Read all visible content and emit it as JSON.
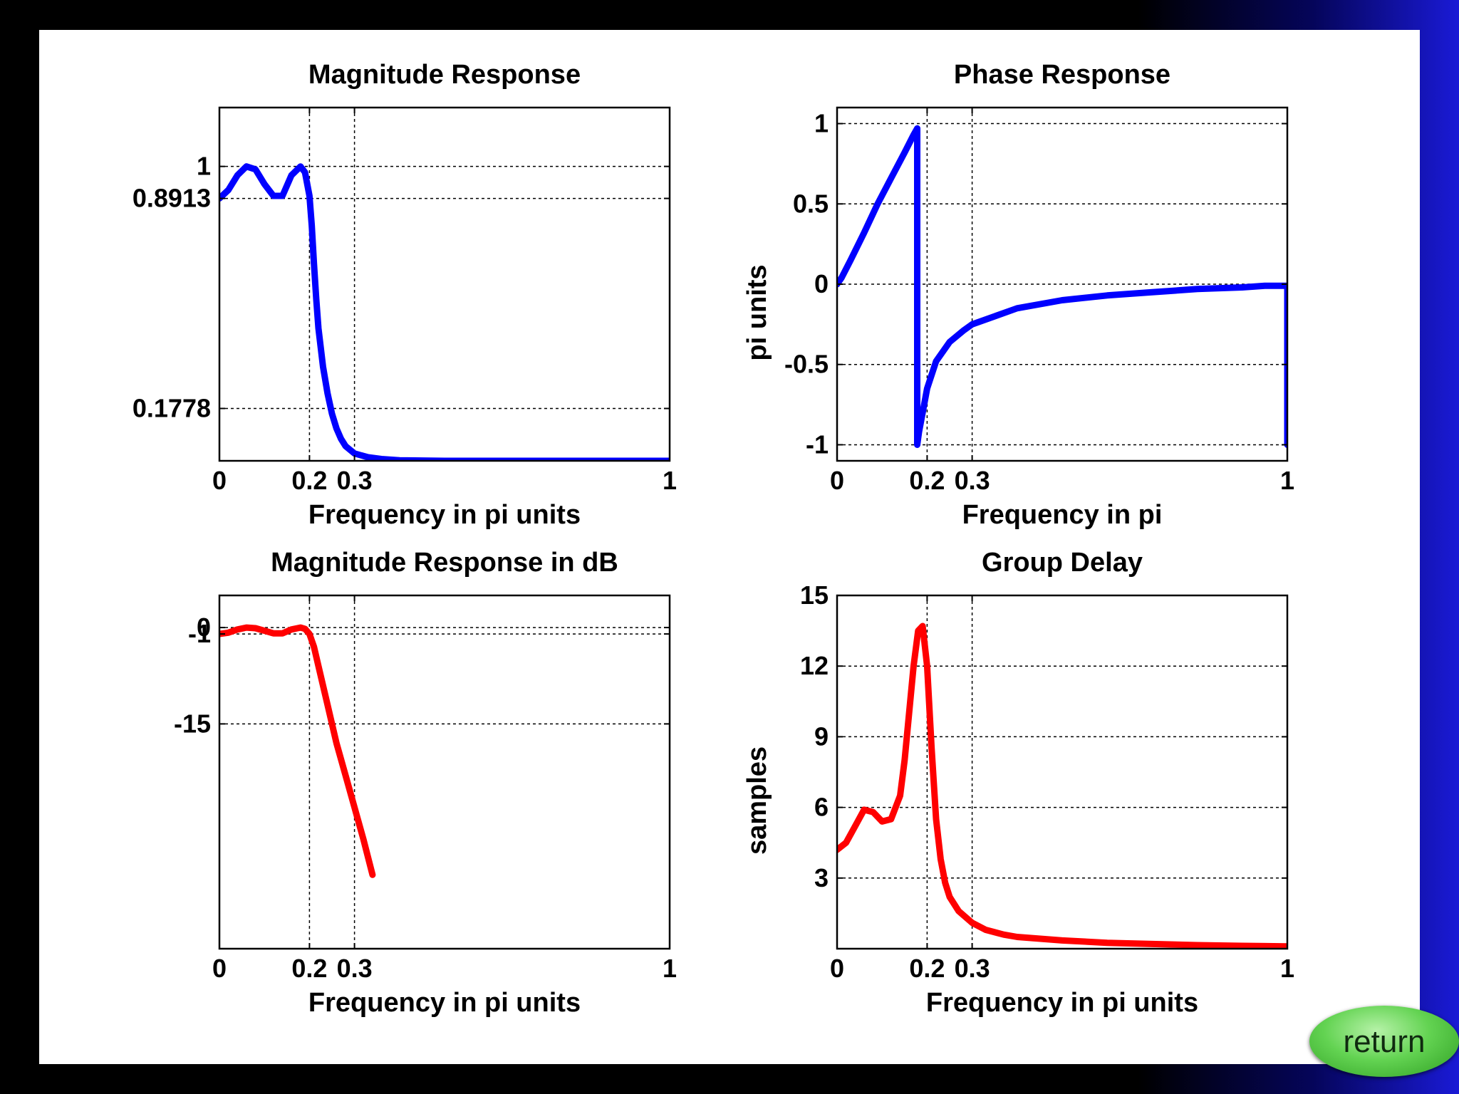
{
  "return_button": {
    "label": "return",
    "color": "#5ccf4a"
  },
  "chart_data": [
    {
      "type": "line",
      "title": "Magnitude Response",
      "xlabel": "Frequency in pi units",
      "ylabel": "",
      "xlim": [
        0,
        1
      ],
      "ylim": [
        0,
        1.2
      ],
      "xticks": [
        0,
        0.2,
        0.3,
        1
      ],
      "xtick_labels": [
        "0",
        "0.2",
        "0.3",
        "1"
      ],
      "yticks": [
        0.1778,
        0.8913,
        1
      ],
      "ytick_labels": [
        "0.1778",
        "0.8913",
        "1"
      ],
      "grid": "ticks",
      "color": "#0000ff",
      "series": [
        {
          "x": [
            0,
            0.02,
            0.04,
            0.06,
            0.08,
            0.1,
            0.12,
            0.14,
            0.16,
            0.18,
            0.19,
            0.2,
            0.205,
            0.21,
            0.215,
            0.22,
            0.23,
            0.24,
            0.25,
            0.26,
            0.27,
            0.28,
            0.3,
            0.33,
            0.36,
            0.4,
            0.45,
            0.5,
            0.6,
            0.7,
            0.8,
            0.9,
            1
          ],
          "values": [
            0.8913,
            0.92,
            0.97,
            1.0,
            0.99,
            0.94,
            0.9,
            0.9,
            0.97,
            1.0,
            0.98,
            0.9,
            0.8,
            0.67,
            0.55,
            0.45,
            0.32,
            0.23,
            0.16,
            0.11,
            0.075,
            0.05,
            0.025,
            0.012,
            0.006,
            0.002,
            0.001,
            0,
            0,
            0,
            0,
            0,
            0
          ]
        }
      ]
    },
    {
      "type": "line",
      "title": "Phase Response",
      "xlabel": "Frequency in pi",
      "ylabel": "pi units",
      "xlim": [
        0,
        1
      ],
      "ylim": [
        -1.1,
        1.1
      ],
      "xticks": [
        0,
        0.2,
        0.3,
        1
      ],
      "xtick_labels": [
        "0",
        "0.2",
        "0.3",
        "1"
      ],
      "yticks": [
        -1,
        -0.5,
        0,
        0.5,
        1
      ],
      "ytick_labels": [
        "-1",
        "-0.5",
        "0",
        "0.5",
        "1"
      ],
      "grid": "ticks",
      "color": "#0000ff",
      "series": [
        {
          "x": [
            0,
            0.01,
            0.03,
            0.06,
            0.09,
            0.12,
            0.15,
            0.17,
            0.178,
            0.178,
            0.182,
            0.19,
            0.2,
            0.22,
            0.25,
            0.28,
            0.3,
            0.35,
            0.4,
            0.5,
            0.6,
            0.7,
            0.8,
            0.9,
            0.95,
            1,
            1
          ],
          "values": [
            0,
            0.04,
            0.15,
            0.32,
            0.5,
            0.66,
            0.82,
            0.93,
            0.97,
            -1.0,
            -0.92,
            -0.8,
            -0.65,
            -0.48,
            -0.36,
            -0.29,
            -0.25,
            -0.2,
            -0.15,
            -0.1,
            -0.07,
            -0.05,
            -0.03,
            -0.02,
            -0.01,
            -0.01,
            -1.0
          ]
        }
      ]
    },
    {
      "type": "line",
      "title": "Magnitude Response in dB",
      "xlabel": "Frequency in pi units",
      "ylabel": "",
      "xlim": [
        0,
        1
      ],
      "ylim": [
        -50,
        5
      ],
      "xticks": [
        0,
        0.2,
        0.3,
        1
      ],
      "xtick_labels": [
        "0",
        "0.2",
        "0.3",
        "1"
      ],
      "yticks": [
        -15,
        -1,
        0
      ],
      "ytick_labels": [
        "-15",
        "-1",
        "0"
      ],
      "grid": "ticks",
      "color": "#ff0000",
      "series": [
        {
          "x": [
            0,
            0.02,
            0.04,
            0.06,
            0.08,
            0.1,
            0.12,
            0.14,
            0.16,
            0.18,
            0.19,
            0.2,
            0.21,
            0.22,
            0.24,
            0.26,
            0.28,
            0.3,
            0.32,
            0.34
          ],
          "values": [
            -1,
            -0.8,
            -0.3,
            0,
            -0.1,
            -0.5,
            -0.9,
            -0.9,
            -0.3,
            0,
            -0.2,
            -1,
            -3,
            -6,
            -12,
            -18,
            -23,
            -28,
            -33,
            -38.5
          ]
        }
      ]
    },
    {
      "type": "line",
      "title": "Group Delay",
      "xlabel": "Frequency in pi units",
      "ylabel": "samples",
      "xlim": [
        0,
        1
      ],
      "ylim": [
        0,
        15
      ],
      "xticks": [
        0,
        0.2,
        0.3,
        1
      ],
      "xtick_labels": [
        "0",
        "0.2",
        "0.3",
        "1"
      ],
      "yticks": [
        3,
        6,
        9,
        12,
        15
      ],
      "ytick_labels": [
        "3",
        "6",
        "9",
        "12",
        "15"
      ],
      "grid": "ticks",
      "color": "#ff0000",
      "series": [
        {
          "x": [
            0,
            0.02,
            0.04,
            0.06,
            0.08,
            0.1,
            0.12,
            0.14,
            0.15,
            0.16,
            0.17,
            0.18,
            0.19,
            0.2,
            0.21,
            0.22,
            0.23,
            0.24,
            0.25,
            0.27,
            0.3,
            0.33,
            0.37,
            0.4,
            0.5,
            0.6,
            0.7,
            0.8,
            0.9,
            1
          ],
          "values": [
            4.2,
            4.5,
            5.2,
            5.9,
            5.8,
            5.4,
            5.5,
            6.5,
            8.0,
            10.0,
            12.0,
            13.5,
            13.7,
            12.0,
            8.5,
            5.5,
            3.8,
            2.8,
            2.2,
            1.6,
            1.1,
            0.8,
            0.6,
            0.5,
            0.35,
            0.25,
            0.2,
            0.15,
            0.12,
            0.1
          ]
        }
      ]
    }
  ]
}
